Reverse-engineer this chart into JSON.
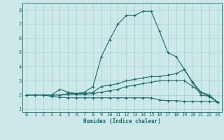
{
  "xlabel": "Humidex (Indice chaleur)",
  "ylabel": "",
  "bg_color": "#cce8e8",
  "line_color": "#1a6b6b",
  "grid_color": "#aad4d4",
  "xlim": [
    -0.5,
    23.5
  ],
  "ylim": [
    0.8,
    8.5
  ],
  "xticks": [
    0,
    1,
    2,
    3,
    4,
    5,
    6,
    7,
    8,
    9,
    10,
    11,
    12,
    13,
    14,
    15,
    16,
    17,
    18,
    19,
    20,
    21,
    22,
    23
  ],
  "yticks": [
    1,
    2,
    3,
    4,
    5,
    6,
    7,
    8
  ],
  "lines": [
    {
      "x": [
        0,
        1,
        2,
        3,
        4,
        5,
        6,
        7,
        8,
        9,
        10,
        11,
        12,
        13,
        14,
        15,
        16,
        17,
        18,
        19,
        20,
        21,
        22,
        23
      ],
      "y": [
        2.0,
        2.0,
        2.0,
        2.0,
        2.4,
        2.2,
        2.1,
        2.2,
        2.6,
        4.7,
        5.9,
        7.0,
        7.6,
        7.6,
        7.9,
        7.9,
        6.5,
        5.0,
        4.7,
        3.8,
        2.85,
        2.0,
        1.9,
        1.5
      ]
    },
    {
      "x": [
        0,
        1,
        2,
        3,
        4,
        5,
        6,
        7,
        8,
        9,
        10,
        11,
        12,
        13,
        14,
        15,
        16,
        17,
        18,
        19,
        20,
        21,
        22,
        23
      ],
      "y": [
        2.0,
        2.0,
        2.0,
        2.0,
        2.0,
        2.1,
        2.1,
        2.1,
        2.2,
        2.6,
        2.7,
        2.8,
        3.0,
        3.1,
        3.2,
        3.3,
        3.3,
        3.4,
        3.5,
        3.8,
        2.9,
        2.2,
        2.0,
        1.5
      ]
    },
    {
      "x": [
        0,
        1,
        2,
        3,
        4,
        5,
        6,
        7,
        8,
        9,
        10,
        11,
        12,
        13,
        14,
        15,
        16,
        17,
        18,
        19,
        20,
        21,
        22,
        23
      ],
      "y": [
        2.0,
        2.0,
        2.0,
        2.0,
        2.0,
        2.05,
        2.05,
        2.05,
        2.1,
        2.2,
        2.3,
        2.4,
        2.6,
        2.7,
        2.8,
        2.9,
        3.0,
        3.0,
        3.0,
        3.0,
        2.6,
        2.2,
        1.9,
        1.5
      ]
    },
    {
      "x": [
        0,
        1,
        2,
        3,
        4,
        5,
        6,
        7,
        8,
        9,
        10,
        11,
        12,
        13,
        14,
        15,
        16,
        17,
        18,
        19,
        20,
        21,
        22,
        23
      ],
      "y": [
        2.0,
        2.0,
        2.0,
        1.9,
        1.85,
        1.8,
        1.8,
        1.8,
        1.8,
        1.8,
        1.8,
        1.8,
        1.8,
        1.8,
        1.8,
        1.8,
        1.65,
        1.6,
        1.6,
        1.55,
        1.55,
        1.55,
        1.55,
        1.5
      ]
    }
  ]
}
